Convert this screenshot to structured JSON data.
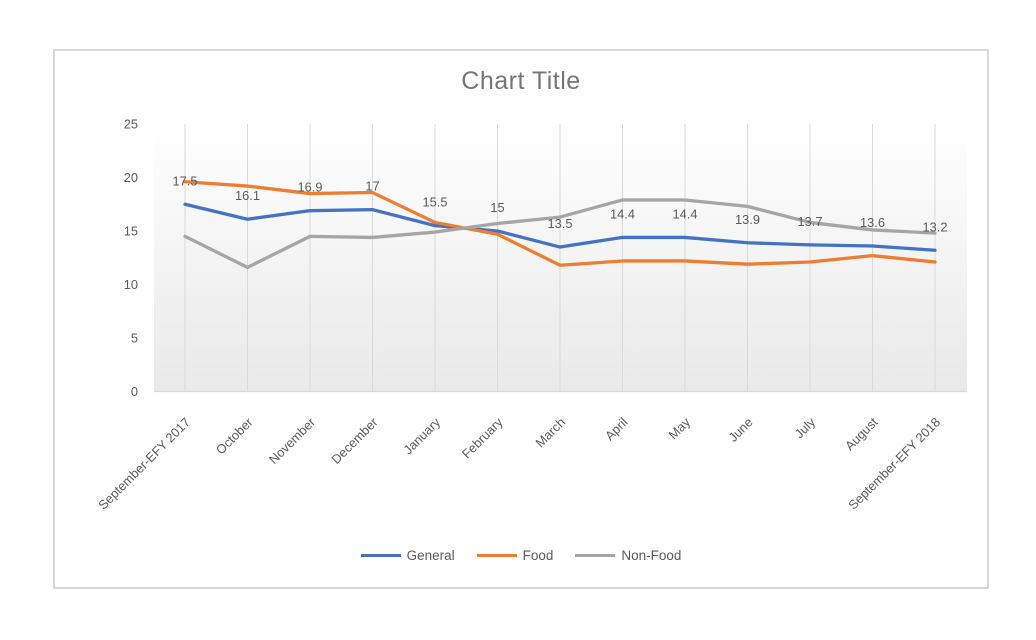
{
  "chart_data": {
    "type": "line",
    "title": "Chart Title",
    "categories": [
      "September-EFY  2017",
      "October",
      "November",
      "December",
      "January",
      "February",
      "March",
      "April",
      "May",
      "June",
      "July",
      "August",
      "September-EFY  2018"
    ],
    "series": [
      {
        "name": "General",
        "color": "#4472C4",
        "show_labels": true,
        "values": [
          17.5,
          16.1,
          16.9,
          17,
          15.5,
          15,
          13.5,
          14.4,
          14.4,
          13.9,
          13.7,
          13.6,
          13.2
        ],
        "labels": [
          "17.5",
          "16.1",
          "16.9",
          "17",
          "15.5",
          "15",
          "13.5",
          "14.4",
          "14.4",
          "13.9",
          "13.7",
          "13.6",
          "13.2"
        ]
      },
      {
        "name": "Food",
        "color": "#ED7D31",
        "show_labels": false,
        "values": [
          19.6,
          19.2,
          18.5,
          18.6,
          15.8,
          14.7,
          11.8,
          12.2,
          12.2,
          11.9,
          12.1,
          12.7,
          12.1
        ]
      },
      {
        "name": "Non-Food",
        "color": "#A5A5A5",
        "show_labels": false,
        "values": [
          14.5,
          11.6,
          14.5,
          14.4,
          14.9,
          15.7,
          16.3,
          17.9,
          17.9,
          17.3,
          15.8,
          15.1,
          14.8
        ]
      }
    ],
    "y_axis": {
      "min": 0,
      "max": 25,
      "step": 5,
      "tick_labels": [
        "0",
        "5",
        "10",
        "15",
        "20",
        "25"
      ]
    },
    "x_axis": {
      "label_rotation_deg": -45
    },
    "legend": {
      "position": "bottom",
      "entries": [
        "General",
        "Food",
        "Non-Food"
      ]
    },
    "gridlines": {
      "vertical": true,
      "horizontal": false
    },
    "style": {
      "title_color": "#757575",
      "tick_label_color": "#595959",
      "data_label_color": "#595959",
      "gridline_color": "#d9d9d9",
      "axis_line_color": "#d9d9d9",
      "plot_fill_top": "#ffffff",
      "plot_fill_bottom": "#e9e9e9",
      "card_border_color": "#d9d9d9"
    }
  }
}
